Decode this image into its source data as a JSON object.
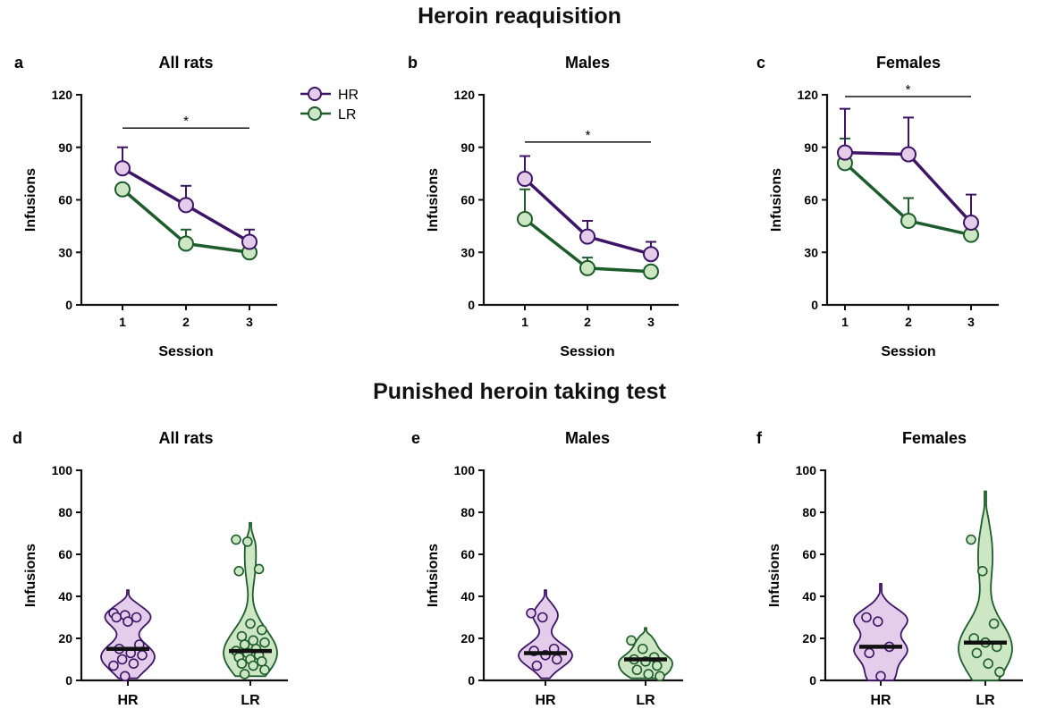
{
  "section_titles": {
    "top": "Heroin reaquisition",
    "bottom": "Punished heroin taking test"
  },
  "colors": {
    "hr_line": "#3d1466",
    "hr_fill": "#e4cdea",
    "lr_line": "#1d5c2b",
    "lr_fill": "#cde6c3",
    "axis": "#111111",
    "median": "#111111"
  },
  "legend": {
    "placement": "right of panel a",
    "entries": [
      "HR",
      "LR"
    ]
  },
  "chart_data": [
    {
      "panel": "a",
      "title": "All rats",
      "type": "line",
      "xlabel": "Session",
      "ylabel": "Infusions",
      "x": [
        1,
        2,
        3
      ],
      "ylim": [
        0,
        120
      ],
      "yticks": [
        0,
        30,
        60,
        90,
        120
      ],
      "series": [
        {
          "name": "HR",
          "values": [
            78,
            57,
            36
          ],
          "error": [
            12,
            11,
            7
          ]
        },
        {
          "name": "LR",
          "values": [
            66,
            35,
            30
          ],
          "error": [
            0,
            8,
            0
          ]
        }
      ],
      "significance": {
        "from": 1,
        "to": 3,
        "y": 101,
        "label": "*"
      }
    },
    {
      "panel": "b",
      "title": "Males",
      "type": "line",
      "xlabel": "Session",
      "ylabel": "Infusions",
      "x": [
        1,
        2,
        3
      ],
      "ylim": [
        0,
        120
      ],
      "yticks": [
        0,
        30,
        60,
        90,
        120
      ],
      "series": [
        {
          "name": "HR",
          "values": [
            72,
            39,
            29
          ],
          "error": [
            13,
            9,
            7
          ]
        },
        {
          "name": "LR",
          "values": [
            49,
            21,
            19
          ],
          "error": [
            17,
            6,
            0
          ]
        }
      ],
      "significance": {
        "from": 1,
        "to": 3,
        "y": 93,
        "label": "*"
      }
    },
    {
      "panel": "c",
      "title": "Females",
      "type": "line",
      "xlabel": "Session",
      "ylabel": "Infusions",
      "x": [
        1,
        2,
        3
      ],
      "ylim": [
        0,
        120
      ],
      "yticks": [
        0,
        30,
        60,
        90,
        120
      ],
      "series": [
        {
          "name": "HR",
          "values": [
            87,
            86,
            47
          ],
          "error": [
            25,
            21,
            16
          ]
        },
        {
          "name": "LR",
          "values": [
            81,
            48,
            40
          ],
          "error": [
            14,
            13,
            0
          ]
        }
      ],
      "significance": {
        "from": 1,
        "to": 3,
        "y": 119,
        "label": "*"
      }
    },
    {
      "panel": "d",
      "title": "All rats",
      "type": "violin",
      "ylabel": "Infusions",
      "ylim": [
        0,
        100
      ],
      "yticks": [
        0,
        20,
        40,
        60,
        80,
        100
      ],
      "categories": [
        "HR",
        "LR"
      ],
      "groups": [
        {
          "name": "HR",
          "median": 15,
          "range": [
            1,
            43
          ],
          "points": [
            32,
            31,
            30,
            30,
            28,
            17,
            15,
            13,
            12,
            10,
            8,
            7,
            2
          ]
        },
        {
          "name": "LR",
          "median": 14,
          "range": [
            2,
            75
          ],
          "points": [
            67,
            66,
            53,
            52,
            27,
            24,
            21,
            19,
            18,
            17,
            15,
            14,
            13,
            12,
            11,
            10,
            9,
            8,
            7,
            5,
            3
          ]
        }
      ]
    },
    {
      "panel": "e",
      "title": "Males",
      "type": "violin",
      "ylabel": "Infusions",
      "ylim": [
        0,
        100
      ],
      "yticks": [
        0,
        20,
        40,
        60,
        80,
        100
      ],
      "categories": [
        "HR",
        "LR"
      ],
      "groups": [
        {
          "name": "HR",
          "median": 13,
          "range": [
            1,
            43
          ],
          "points": [
            32,
            30,
            15,
            14,
            12,
            10,
            7
          ]
        },
        {
          "name": "LR",
          "median": 10,
          "range": [
            1,
            25
          ],
          "points": [
            19,
            15,
            11,
            10,
            9,
            7,
            5,
            3,
            2
          ]
        }
      ]
    },
    {
      "panel": "f",
      "title": "Females",
      "type": "violin",
      "ylabel": "Infusions",
      "ylim": [
        0,
        100
      ],
      "yticks": [
        0,
        20,
        40,
        60,
        80,
        100
      ],
      "categories": [
        "HR",
        "LR"
      ],
      "groups": [
        {
          "name": "HR",
          "median": 16,
          "range": [
            0,
            46
          ],
          "points": [
            30,
            28,
            16,
            13,
            2
          ]
        },
        {
          "name": "LR",
          "median": 18,
          "range": [
            0,
            90
          ],
          "points": [
            67,
            52,
            27,
            20,
            18,
            16,
            13,
            8,
            4
          ]
        }
      ]
    }
  ]
}
